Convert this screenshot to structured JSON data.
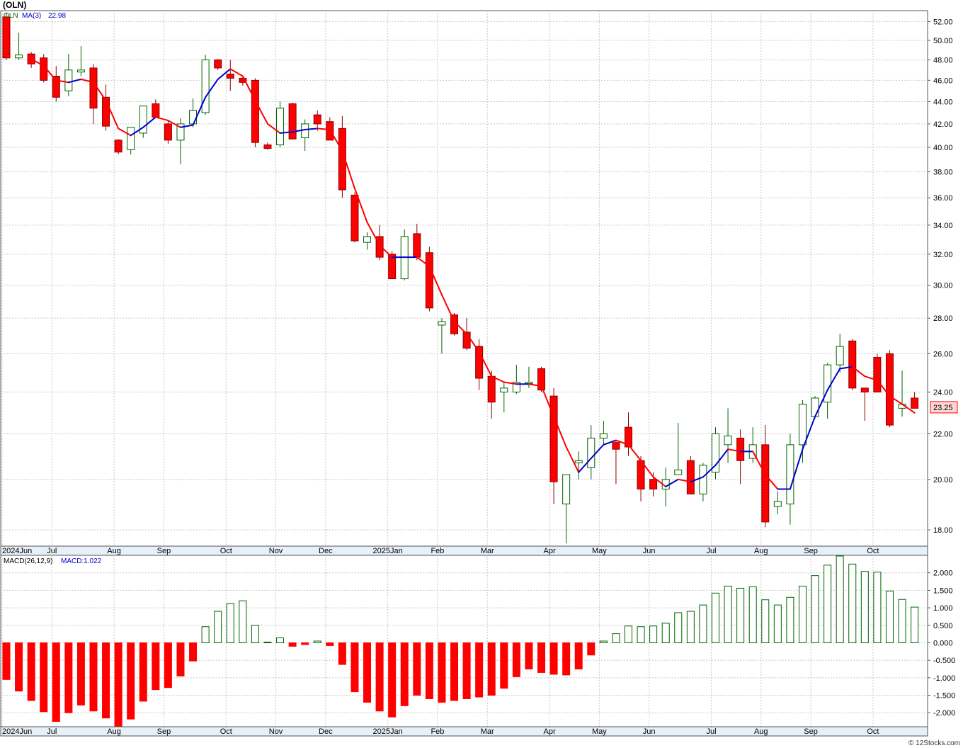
{
  "header": {
    "symbol": "(OLN)"
  },
  "watermark": "© 12Stocks.com",
  "colors": {
    "up": "#006400",
    "down": "#ff0000",
    "ma_up": "#0000cc",
    "ma_down": "#ff0000",
    "grid": "#c8c8c8"
  },
  "chart_data": [
    {
      "type": "candlestick",
      "legend": {
        "symbol": "OLN",
        "ma_label": "MA(3)",
        "ma_value": "22.98"
      },
      "last_price_label": "23.25",
      "ylim": [
        17.4,
        53.2
      ],
      "scale": "log",
      "y_ticks": [
        "52.00",
        "50.00",
        "48.00",
        "46.00",
        "44.00",
        "42.00",
        "40.00",
        "38.00",
        "36.00",
        "34.00",
        "32.00",
        "30.00",
        "28.00",
        "26.00",
        "24.00",
        "22.00",
        "20.00",
        "18.00"
      ],
      "x_labels": [
        {
          "label": "2024Jun",
          "i": 0
        },
        {
          "label": "Jul",
          "i": 4
        },
        {
          "label": "Aug",
          "i": 9
        },
        {
          "label": "Sep",
          "i": 13
        },
        {
          "label": "Oct",
          "i": 18
        },
        {
          "label": "Nov",
          "i": 22
        },
        {
          "label": "Dec",
          "i": 26
        },
        {
          "label": "2025Jan",
          "i": 31
        },
        {
          "label": "Feb",
          "i": 35
        },
        {
          "label": "Mar",
          "i": 39
        },
        {
          "label": "Apr",
          "i": 44
        },
        {
          "label": "May",
          "i": 48
        },
        {
          "label": "Jun",
          "i": 52
        },
        {
          "label": "Jul",
          "i": 57
        },
        {
          "label": "Aug",
          "i": 61
        },
        {
          "label": "Sep",
          "i": 65
        },
        {
          "label": "Oct",
          "i": 70
        }
      ],
      "ohlc": [
        [
          52.5,
          53.0,
          48.0,
          48.2
        ],
        [
          48.2,
          50.8,
          48.0,
          48.5
        ],
        [
          48.6,
          48.8,
          47.2,
          47.6
        ],
        [
          48.2,
          48.6,
          45.8,
          46.0
        ],
        [
          46.4,
          47.4,
          44.0,
          44.4
        ],
        [
          45.0,
          48.6,
          44.5,
          47.0
        ],
        [
          46.8,
          49.4,
          46.4,
          47.0
        ],
        [
          47.2,
          47.6,
          42.0,
          43.4
        ],
        [
          44.4,
          45.6,
          41.4,
          41.8
        ],
        [
          40.6,
          40.7,
          39.4,
          39.6
        ],
        [
          39.8,
          41.7,
          39.4,
          41.7
        ],
        [
          41.2,
          43.6,
          40.8,
          43.6
        ],
        [
          43.8,
          44.2,
          42.6,
          42.6
        ],
        [
          42.0,
          42.3,
          40.3,
          40.6
        ],
        [
          40.6,
          42.5,
          38.6,
          42.0
        ],
        [
          42.0,
          44.3,
          41.7,
          43.2
        ],
        [
          43.0,
          48.5,
          42.8,
          48.0
        ],
        [
          48.0,
          48.1,
          47.0,
          47.2
        ],
        [
          46.6,
          48.0,
          45.0,
          46.2
        ],
        [
          46.2,
          46.3,
          45.5,
          45.8
        ],
        [
          46.0,
          46.2,
          40.0,
          40.4
        ],
        [
          40.2,
          40.4,
          39.8,
          39.9
        ],
        [
          40.2,
          44.0,
          40.0,
          43.4
        ],
        [
          43.8,
          43.9,
          40.7,
          40.7
        ],
        [
          40.8,
          42.4,
          39.7,
          42.0
        ],
        [
          42.8,
          43.2,
          41.4,
          42.0
        ],
        [
          42.2,
          42.6,
          40.6,
          40.6
        ],
        [
          41.6,
          42.7,
          36.0,
          36.6
        ],
        [
          36.2,
          36.4,
          32.8,
          32.9
        ],
        [
          32.8,
          33.5,
          32.3,
          33.2
        ],
        [
          33.2,
          34.0,
          31.6,
          31.8
        ],
        [
          32.0,
          32.2,
          30.4,
          30.4
        ],
        [
          30.4,
          33.7,
          30.3,
          33.2
        ],
        [
          33.4,
          34.1,
          31.6,
          31.8
        ],
        [
          32.1,
          32.5,
          28.4,
          28.6
        ],
        [
          27.6,
          28.0,
          26.0,
          27.8
        ],
        [
          28.2,
          28.3,
          27.0,
          27.1
        ],
        [
          27.2,
          28.0,
          26.2,
          26.3
        ],
        [
          26.4,
          26.8,
          24.1,
          24.7
        ],
        [
          24.8,
          25.1,
          22.7,
          23.5
        ],
        [
          24.0,
          24.5,
          23.0,
          24.2
        ],
        [
          24.0,
          25.4,
          23.9,
          24.5
        ],
        [
          24.5,
          25.3,
          24.2,
          24.5
        ],
        [
          25.2,
          25.3,
          24.0,
          24.1
        ],
        [
          23.8,
          24.2,
          19.0,
          19.9
        ],
        [
          19.0,
          20.2,
          17.5,
          20.2
        ],
        [
          20.7,
          21.2,
          20.0,
          20.8
        ],
        [
          20.5,
          22.4,
          20.0,
          21.8
        ],
        [
          21.8,
          22.6,
          21.5,
          22.0
        ],
        [
          21.6,
          21.7,
          19.8,
          21.3
        ],
        [
          22.3,
          23.0,
          21.0,
          21.4
        ],
        [
          20.8,
          21.0,
          19.1,
          19.6
        ],
        [
          20.0,
          20.3,
          19.3,
          19.6
        ],
        [
          19.6,
          20.5,
          18.9,
          20.0
        ],
        [
          20.2,
          22.5,
          20.3,
          20.4
        ],
        [
          20.8,
          21.0,
          19.4,
          19.4
        ],
        [
          19.4,
          20.7,
          19.1,
          20.6
        ],
        [
          20.3,
          22.3,
          20.0,
          22.0
        ],
        [
          21.5,
          23.2,
          20.7,
          21.9
        ],
        [
          21.8,
          22.2,
          19.8,
          20.8
        ],
        [
          20.9,
          22.3,
          20.7,
          21.5
        ],
        [
          21.5,
          22.4,
          18.1,
          18.3
        ],
        [
          18.9,
          19.5,
          18.6,
          19.1
        ],
        [
          19.0,
          22.0,
          18.2,
          21.5
        ],
        [
          21.5,
          23.6,
          20.7,
          23.4
        ],
        [
          22.8,
          23.8,
          22.7,
          23.7
        ],
        [
          23.5,
          25.5,
          22.7,
          25.4
        ],
        [
          25.4,
          27.1,
          25.0,
          26.4
        ],
        [
          26.7,
          26.8,
          24.1,
          24.2
        ],
        [
          24.2,
          24.2,
          22.6,
          24.0
        ],
        [
          25.8,
          26.0,
          24.0,
          24.0
        ],
        [
          26.0,
          26.2,
          22.3,
          22.4
        ],
        [
          23.2,
          25.1,
          22.8,
          23.4
        ],
        [
          23.7,
          24.0,
          23.2,
          23.2
        ]
      ],
      "ma": [
        null,
        null,
        48.1,
        47.4,
        46.0,
        45.8,
        46.1,
        45.8,
        44.1,
        41.6,
        41.0,
        41.7,
        42.6,
        42.3,
        41.7,
        41.9,
        44.4,
        46.1,
        47.1,
        46.4,
        44.1,
        42.0,
        41.2,
        41.3,
        41.5,
        41.6,
        41.5,
        39.7,
        36.7,
        34.2,
        32.6,
        31.8,
        31.8,
        31.8,
        31.2,
        29.4,
        27.8,
        27.1,
        26.1,
        24.8,
        24.5,
        24.4,
        24.4,
        24.3,
        22.8,
        21.4,
        20.3,
        20.9,
        21.5,
        21.7,
        21.5,
        20.8,
        20.1,
        19.7,
        20.0,
        19.9,
        20.1,
        20.6,
        21.3,
        21.2,
        21.2,
        20.2,
        19.6,
        19.6,
        21.3,
        22.8,
        24.1,
        25.2,
        25.3,
        24.8,
        24.6,
        23.8,
        23.4,
        22.98
      ]
    },
    {
      "type": "bar",
      "legend": {
        "name": "MACD(26,12,9)",
        "value_label": "MACD:1.022"
      },
      "ylim": [
        -2.4,
        2.5
      ],
      "y_ticks": [
        "2.000",
        "1.500",
        "1.000",
        "0.500",
        "0.000",
        "-0.500",
        "-1.000",
        "-1.500",
        "-2.000"
      ],
      "values": [
        -1.05,
        -1.38,
        -1.65,
        -1.97,
        -2.25,
        -2.0,
        -1.78,
        -1.95,
        -2.15,
        -2.43,
        -2.18,
        -1.67,
        -1.34,
        -1.28,
        -0.95,
        -0.52,
        0.46,
        0.9,
        1.12,
        1.2,
        0.5,
        0.02,
        0.14,
        -0.1,
        -0.05,
        0.05,
        -0.08,
        -0.62,
        -1.4,
        -1.7,
        -1.95,
        -2.12,
        -1.8,
        -1.5,
        -1.6,
        -1.7,
        -1.65,
        -1.6,
        -1.55,
        -1.5,
        -1.3,
        -0.97,
        -0.75,
        -0.85,
        -0.9,
        -0.92,
        -0.75,
        -0.35,
        0.05,
        0.26,
        0.48,
        0.46,
        0.48,
        0.56,
        0.86,
        0.9,
        1.08,
        1.42,
        1.62,
        1.56,
        1.6,
        1.23,
        1.08,
        1.3,
        1.62,
        1.92,
        2.22,
        2.48,
        2.25,
        2.04,
        2.02,
        1.48,
        1.24,
        1.02
      ]
    }
  ]
}
